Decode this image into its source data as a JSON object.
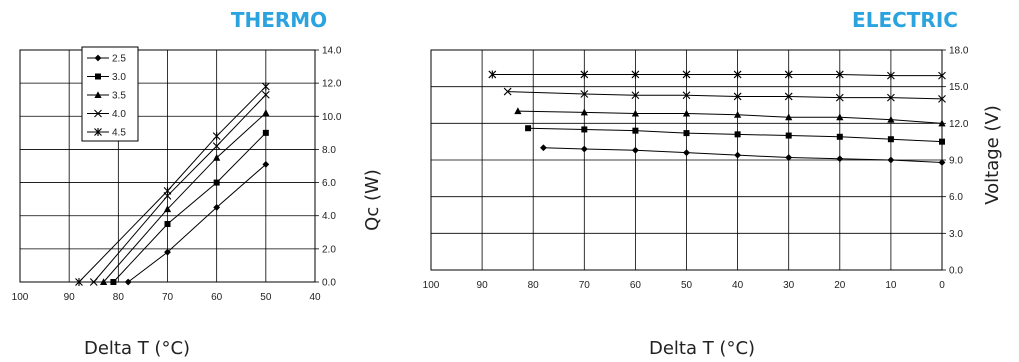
{
  "chart_data": [
    {
      "type": "line",
      "title": "THERMO",
      "xlabel": "Delta T (°C)",
      "ylabel": "Qc (W)",
      "xlim": [
        100,
        40
      ],
      "ylim": [
        0,
        14
      ],
      "xticks": [
        100,
        90,
        80,
        70,
        60,
        50,
        40
      ],
      "yticks": [
        "0.0",
        "2.0",
        "4.0",
        "6.0",
        "8.0",
        "10.0",
        "12.0",
        "14.0"
      ],
      "grid": true,
      "legend": "top-left",
      "series": [
        {
          "name": "2.5",
          "marker": "diamond",
          "x": [
            78,
            70,
            60,
            50
          ],
          "y": [
            0.0,
            1.8,
            4.5,
            7.1
          ]
        },
        {
          "name": "3.0",
          "marker": "square",
          "x": [
            81,
            70,
            60,
            50
          ],
          "y": [
            0.0,
            3.5,
            6.0,
            9.0
          ]
        },
        {
          "name": "3.5",
          "marker": "triangle",
          "x": [
            83,
            70,
            60,
            50
          ],
          "y": [
            0.0,
            4.4,
            7.5,
            10.2
          ]
        },
        {
          "name": "4.0",
          "marker": "x",
          "x": [
            85,
            70,
            60,
            50
          ],
          "y": [
            0.0,
            5.2,
            8.2,
            11.3
          ]
        },
        {
          "name": "4.5",
          "marker": "star",
          "x": [
            88,
            70,
            60,
            50
          ],
          "y": [
            0.0,
            5.5,
            8.8,
            11.8
          ]
        }
      ]
    },
    {
      "type": "line",
      "title": "ELECTRIC",
      "xlabel": "Delta T (°C)",
      "ylabel": "Voltage (V)",
      "xlim": [
        100,
        0
      ],
      "ylim": [
        0,
        18
      ],
      "xticks": [
        100,
        90,
        80,
        70,
        60,
        50,
        40,
        30,
        20,
        10,
        0
      ],
      "yticks": [
        "0.0",
        "3.0",
        "6.0",
        "9.0",
        "12.0",
        "15.0",
        "18.0"
      ],
      "grid": true,
      "series": [
        {
          "name": "2.5",
          "marker": "diamond",
          "x": [
            78,
            70,
            60,
            50,
            40,
            30,
            20,
            10,
            0
          ],
          "y": [
            10.0,
            9.9,
            9.8,
            9.6,
            9.4,
            9.2,
            9.1,
            9.0,
            8.8
          ]
        },
        {
          "name": "3.0",
          "marker": "square",
          "x": [
            81,
            70,
            60,
            50,
            40,
            30,
            20,
            10,
            0
          ],
          "y": [
            11.6,
            11.5,
            11.4,
            11.2,
            11.1,
            11.0,
            10.9,
            10.7,
            10.5
          ]
        },
        {
          "name": "3.5",
          "marker": "triangle",
          "x": [
            83,
            70,
            60,
            50,
            40,
            30,
            20,
            10,
            0
          ],
          "y": [
            13.0,
            12.9,
            12.8,
            12.8,
            12.7,
            12.5,
            12.5,
            12.3,
            12.0
          ]
        },
        {
          "name": "4.0",
          "marker": "x",
          "x": [
            85,
            70,
            60,
            50,
            40,
            30,
            20,
            10,
            0
          ],
          "y": [
            14.6,
            14.4,
            14.3,
            14.3,
            14.2,
            14.2,
            14.1,
            14.1,
            14.0
          ]
        },
        {
          "name": "4.5",
          "marker": "star",
          "x": [
            88,
            70,
            60,
            50,
            40,
            30,
            20,
            10,
            0
          ],
          "y": [
            16.0,
            16.0,
            16.0,
            16.0,
            16.0,
            16.0,
            16.0,
            15.9,
            15.9
          ]
        }
      ]
    }
  ]
}
